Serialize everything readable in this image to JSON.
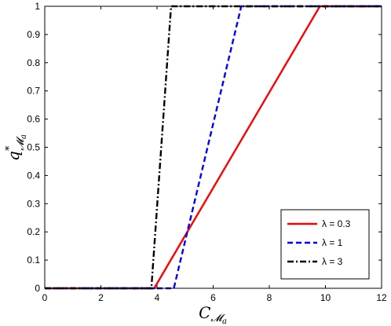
{
  "chart_data": {
    "type": "line",
    "xlabel": "C_{M_a}",
    "ylabel": "q*_{M_a}",
    "xlim": [
      0,
      12
    ],
    "ylim": [
      0,
      1
    ],
    "x_ticks": [
      "0",
      "2",
      "4",
      "6",
      "8",
      "10",
      "12"
    ],
    "y_ticks": [
      "0",
      "0.1",
      "0.2",
      "0.3",
      "0.4",
      "0.5",
      "0.6",
      "0.7",
      "0.8",
      "0.9",
      "1"
    ],
    "grid": false,
    "legend_position": "bottom-right",
    "series": [
      {
        "name": "λ = 0.3",
        "color": "#ff0000",
        "style": "solid",
        "x": [
          0,
          3.9,
          9.8,
          12
        ],
        "y": [
          0,
          0,
          1,
          1
        ]
      },
      {
        "name": "λ = 1",
        "color": "#0000ff",
        "style": "dashed",
        "x": [
          0,
          4.6,
          7.0,
          12
        ],
        "y": [
          0,
          0,
          1,
          1
        ]
      },
      {
        "name": "λ = 3",
        "color": "#000000",
        "style": "dashdot",
        "x": [
          0,
          3.8,
          4.5,
          12
        ],
        "y": [
          0,
          0,
          1,
          1
        ]
      }
    ]
  }
}
